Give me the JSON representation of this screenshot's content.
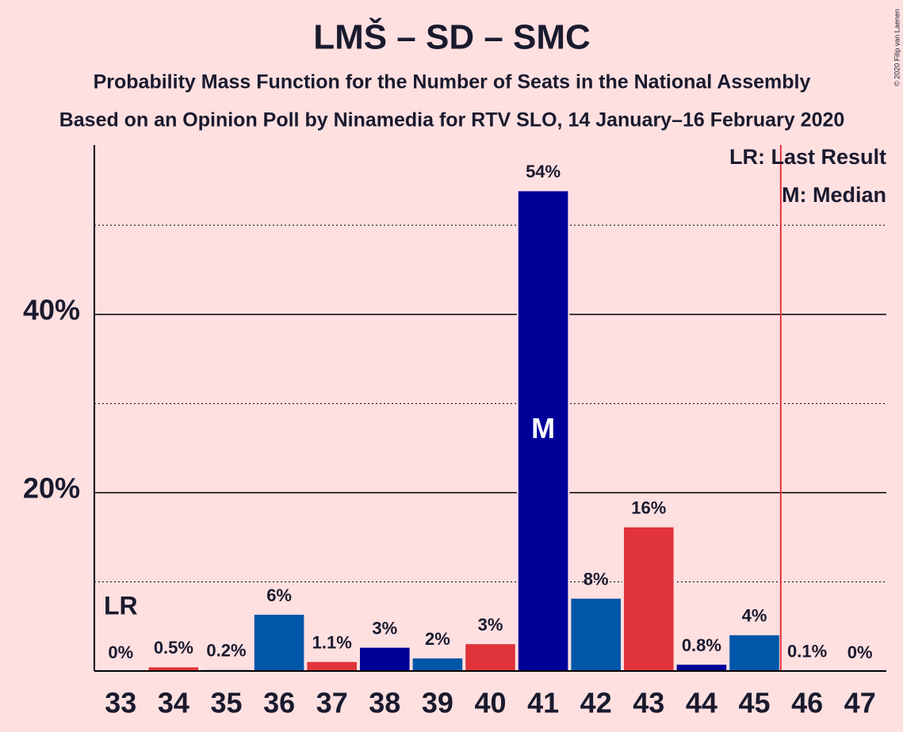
{
  "chart_data": {
    "type": "bar",
    "title": "LMŠ – SD – SMC",
    "subtitle": "Probability Mass Function for the Number of Seats in the National Assembly",
    "subtitle2": "Based on an Opinion Poll by Ninamedia for RTV SLO, 14 January–16 February 2020",
    "copyright": "© 2020 Filip van Laenen",
    "categories": [
      33,
      34,
      35,
      36,
      37,
      38,
      39,
      40,
      41,
      42,
      43,
      44,
      45,
      46,
      47
    ],
    "values": [
      0,
      0.5,
      0.2,
      6.4,
      1.1,
      2.7,
      1.5,
      3.1,
      53.9,
      8.2,
      16.2,
      0.8,
      4.1,
      0.1,
      0
    ],
    "value_labels": [
      "0%",
      "0.5%",
      "0.2%",
      "6%",
      "1.1%",
      "3%",
      "2%",
      "3%",
      "54%",
      "8%",
      "16%",
      "0.8%",
      "4%",
      "0.1%",
      "0%"
    ],
    "colors": [
      "#000099",
      "#e0333a",
      "#0057a8",
      "#0057a8",
      "#e0333a",
      "#000099",
      "#0057a8",
      "#e0333a",
      "#000099",
      "#0057a8",
      "#e0333a",
      "#000099",
      "#0057a8",
      "#e0333a",
      "#0057a8"
    ],
    "ylim": [
      0,
      59
    ],
    "yticks": [
      {
        "value": 20,
        "label": "20%"
      },
      {
        "value": 40,
        "label": "40%"
      }
    ],
    "minor_yticks": [
      10,
      30,
      50
    ],
    "last_result": 33,
    "last_result_label": "LR",
    "median": 41,
    "median_label": "M",
    "majority": 46,
    "majority_color": "#e0333a",
    "legend": [
      "LR: Last Result",
      "M: Median"
    ]
  }
}
